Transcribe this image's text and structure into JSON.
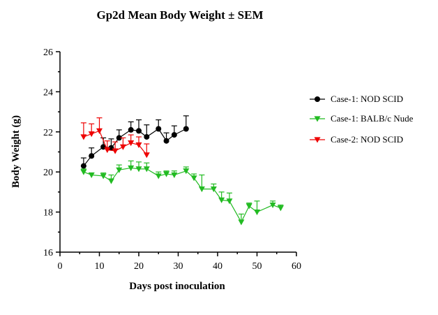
{
  "chart_data": {
    "type": "line",
    "title": "Gp2d Mean Body Weight ± SEM",
    "xlabel": "Days post inoculation",
    "ylabel": "Body Weight (g)",
    "xlim": [
      0,
      60
    ],
    "ylim": [
      16,
      26
    ],
    "xticks": [
      0,
      10,
      20,
      30,
      40,
      50,
      60
    ],
    "yticks": [
      16,
      18,
      20,
      22,
      24,
      26
    ],
    "grid": false,
    "legend_position": "right",
    "error_bars": "upper only (SEM)",
    "series": [
      {
        "name": "Case-1: NOD SCID",
        "color": "#000000",
        "marker": "circle",
        "x": [
          6,
          8,
          11,
          13,
          15,
          18,
          20,
          22,
          25,
          27,
          29,
          32
        ],
        "y": [
          20.3,
          20.8,
          21.25,
          21.2,
          21.7,
          22.1,
          22.05,
          21.75,
          22.15,
          21.55,
          21.85,
          22.15
        ],
        "err": [
          0.4,
          0.4,
          0.45,
          0.45,
          0.4,
          0.4,
          0.55,
          0.6,
          0.45,
          0.4,
          0.45,
          0.65
        ]
      },
      {
        "name": "Case-1: BALB/c Nude",
        "color": "#22bb22",
        "marker": "triangle-down",
        "x": [
          6,
          8,
          11,
          13,
          15,
          18,
          20,
          22,
          25,
          27,
          29,
          32,
          34,
          36,
          39,
          41,
          43,
          46,
          48,
          50,
          54,
          56
        ],
        "y": [
          20.0,
          19.85,
          19.8,
          19.55,
          20.1,
          20.2,
          20.15,
          20.15,
          19.8,
          19.9,
          19.85,
          20.05,
          19.7,
          19.15,
          19.15,
          18.6,
          18.55,
          17.5,
          18.3,
          18.0,
          18.35,
          18.2
        ],
        "err": [
          0.15,
          0.1,
          0.15,
          0.3,
          0.25,
          0.35,
          0.35,
          0.3,
          0.2,
          0.15,
          0.2,
          0.2,
          0.2,
          0.7,
          0.25,
          0.4,
          0.4,
          0.4,
          0.15,
          0.55,
          0.2,
          0.15
        ]
      },
      {
        "name": "Case-2: NOD SCID",
        "color": "#ee0000",
        "marker": "triangle-down",
        "x": [
          6,
          8,
          10,
          12,
          14,
          16,
          18,
          20,
          22
        ],
        "y": [
          21.75,
          21.9,
          22.05,
          21.1,
          21.05,
          21.25,
          21.45,
          21.35,
          20.85
        ],
        "err": [
          0.7,
          0.5,
          0.65,
          0.45,
          0.45,
          0.45,
          0.4,
          0.4,
          0.55
        ]
      }
    ]
  }
}
